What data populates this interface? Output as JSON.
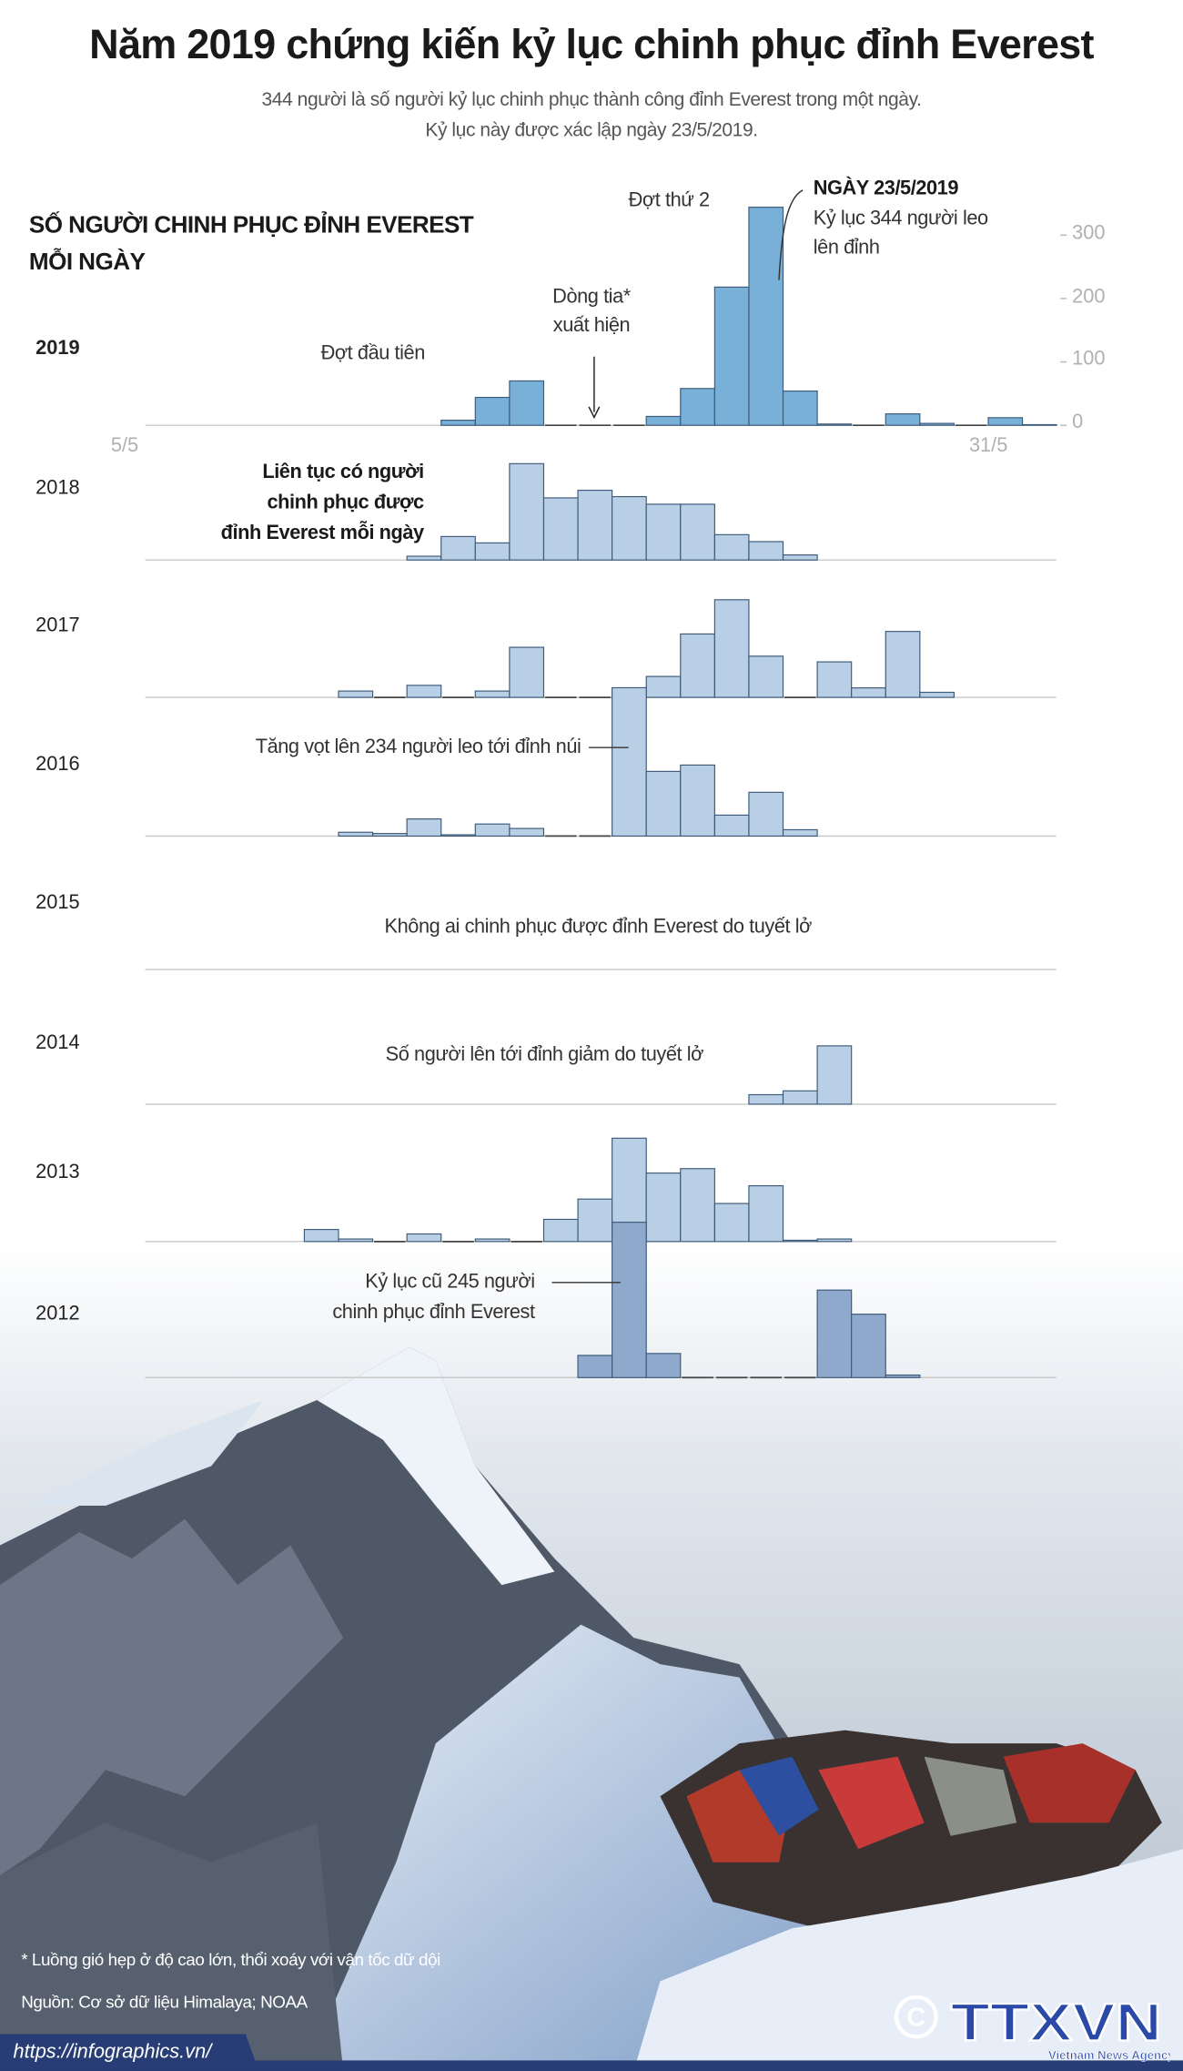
{
  "header": {
    "title": "Năm 2019 chứng kiến kỷ lục chinh phục đỉnh Everest",
    "subtitle_lines": [
      "344 người là số người kỷ lục chinh phục thành công đỉnh Everest trong một ngày.",
      "Kỷ lục này được xác lập ngày 23/5/2019."
    ]
  },
  "chart_data": {
    "type": "bar",
    "title_lines": [
      "SỐ NGƯỜI CHINH PHỤC ĐỈNH EVEREST",
      "MỖI NGÀY"
    ],
    "x_tick_labels": [
      "5/5",
      "31/5"
    ],
    "x_range_days": [
      5,
      31
    ],
    "y_ticks": [
      0,
      100,
      200,
      300
    ],
    "ylim": [
      0,
      344
    ],
    "grid": false,
    "colors": {
      "highlight": "#78b0d8",
      "normal": "#b9cfe6",
      "outline": "#3d5a78",
      "baseline": "#c8c8c8"
    },
    "series": [
      {
        "year": "2019",
        "start_day": 14,
        "values": [
          8,
          44,
          70,
          0,
          0,
          0,
          14,
          58,
          218,
          344,
          54,
          2,
          0,
          18,
          3,
          0,
          12,
          1
        ],
        "highlight": true
      },
      {
        "year": "2018",
        "start_day": 13,
        "values": [
          6,
          37,
          27,
          152,
          98,
          110,
          100,
          88,
          88,
          40,
          29,
          8
        ]
      },
      {
        "year": "2017",
        "start_day": 11,
        "values": [
          10,
          0,
          19,
          0,
          10,
          79,
          0,
          0,
          12,
          33,
          100,
          154,
          65,
          0,
          56,
          15,
          104,
          8
        ]
      },
      {
        "year": "2016",
        "start_day": 11,
        "values": [
          6,
          4,
          27,
          2,
          19,
          12,
          0,
          0,
          234,
          102,
          112,
          33,
          69,
          10
        ]
      },
      {
        "year": "2015",
        "start_day": 5,
        "values": []
      },
      {
        "year": "2014",
        "start_day": 23,
        "values": [
          15,
          21,
          92
        ]
      },
      {
        "year": "2013",
        "start_day": 10,
        "values": [
          19,
          4,
          0,
          12,
          0,
          4,
          0,
          35,
          67,
          163,
          108,
          115,
          60,
          88,
          2,
          4
        ]
      },
      {
        "year": "2012",
        "start_day": 18,
        "values": [
          35,
          245,
          38,
          0,
          0,
          0,
          0,
          138,
          100,
          4
        ]
      }
    ],
    "annotations": {
      "wave2": "Đợt thứ 2",
      "record_title": "NGÀY 23/5/2019",
      "record_lines": [
        "Kỷ lục 344 người leo",
        "lên đỉnh"
      ],
      "jet_lines": [
        "Dòng tia*",
        "xuất hiện"
      ],
      "wave1": "Đợt đầu tiên",
      "y2018_lines": [
        "Liên tục có người",
        "chinh phục được",
        "đỉnh Everest mỗi ngày"
      ],
      "y2016": "Tăng vọt lên 234 người leo tới đỉnh núi",
      "y2015": "Không ai chinh phục được đỉnh Everest do tuyết lở",
      "y2014": "Số người lên tới đỉnh giảm do tuyết lở",
      "y2012_lines": [
        "Kỷ lục cũ 245 người",
        "chinh phục đỉnh Everest"
      ]
    }
  },
  "footer": {
    "footnote": "* Luồng gió hẹp ở độ cao lớn, thổi xoáy với vận tốc dữ dội",
    "source": "Nguồn: Cơ sở dữ liệu Himalaya; NOAA",
    "url": "https://infographics.vn/",
    "logo_text": "TTXVN",
    "logo_sub": "Vietnam News Agency",
    "brand_color": "#283d75"
  }
}
